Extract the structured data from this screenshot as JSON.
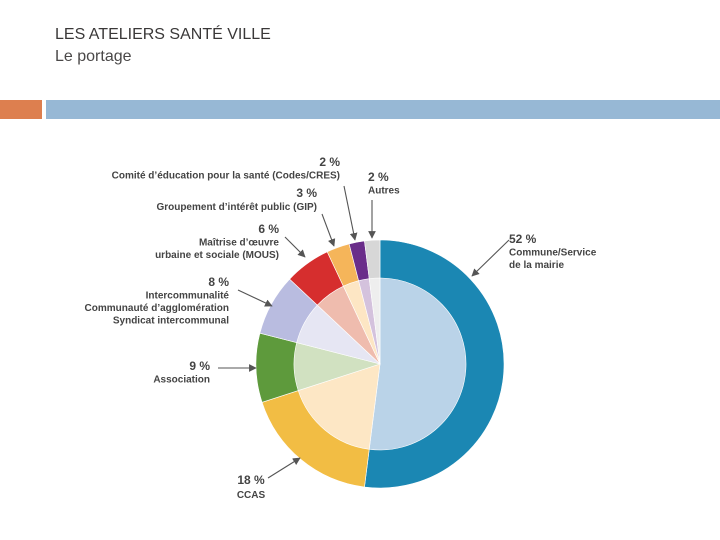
{
  "slide": {
    "title": "LES ATELIERS SANTÉ VILLE",
    "subtitle": "Le portage"
  },
  "colors": {
    "accent": "#dd7f4f",
    "rule": "#97b8d5",
    "text": "#444444"
  },
  "chart_data": {
    "type": "pie",
    "style": "donut-with-inner-pie",
    "title": "",
    "unit": "%",
    "slices": [
      {
        "name": "Commune/Service de la mairie",
        "label_lines": [
          "52 %",
          "Commune/Service",
          "de la mairie"
        ],
        "value": 52,
        "outer_color": "#1b87b3",
        "inner_color": "#bad3e8"
      },
      {
        "name": "CCAS",
        "label_lines": [
          "18 %",
          "CCAS"
        ],
        "value": 18,
        "outer_color": "#f2bd44",
        "inner_color": "#fde7c5"
      },
      {
        "name": "Association",
        "label_lines": [
          "9 %",
          "Association"
        ],
        "value": 9,
        "outer_color": "#5e9a3c",
        "inner_color": "#d1e1c1"
      },
      {
        "name": "Intercommunalité",
        "label_lines": [
          "8 %",
          "Intercommunalité",
          "Communauté d’agglomération",
          "Syndicat intercommunal"
        ],
        "value": 8,
        "outer_color": "#b9bce0",
        "inner_color": "#e6e6f3"
      },
      {
        "name": "Maîtrise d’œuvre urbaine et sociale (MOUS)",
        "label_lines": [
          "6 %",
          "Maîtrise d’œuvre",
          "urbaine et sociale (MOUS)"
        ],
        "value": 6,
        "outer_color": "#d62e2e",
        "inner_color": "#efbcae"
      },
      {
        "name": "Groupement d’intérêt public (GIP)",
        "label_lines": [
          "3 %",
          "Groupement d’intérêt public (GIP)"
        ],
        "value": 3,
        "outer_color": "#f5b55a",
        "inner_color": "#fde6c4"
      },
      {
        "name": "Comité d’éducation pour la santé (Codes/CRES)",
        "label_lines": [
          "2 %",
          "Comité d’éducation pour la santé (Codes/CRES)"
        ],
        "value": 2,
        "outer_color": "#6a2d8a",
        "inner_color": "#d4c2dd"
      },
      {
        "name": "Autres",
        "label_lines": [
          "2 %",
          "Autres"
        ],
        "value": 2,
        "outer_color": "#d7d7d7",
        "inner_color": "#eeeeee"
      }
    ]
  }
}
